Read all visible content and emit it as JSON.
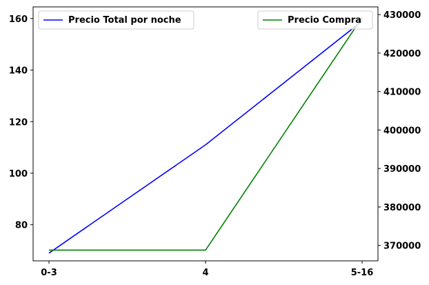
{
  "chart_data": {
    "type": "line",
    "categories": [
      "0-3",
      "4",
      "5-16"
    ],
    "series": [
      {
        "name": "Precio Total por noche",
        "axis": "left",
        "color": "#0000ff",
        "values": [
          69,
          111,
          159
        ]
      },
      {
        "name": "Precio Compra",
        "axis": "right",
        "color": "#008000",
        "values": [
          368800,
          368800,
          429200
        ]
      }
    ],
    "left_axis": {
      "ylim": [
        66,
        164.5
      ],
      "ticks": [
        80,
        100,
        120,
        140,
        160
      ]
    },
    "right_axis": {
      "ylim": [
        366000,
        432000
      ],
      "ticks": [
        370000,
        380000,
        390000,
        400000,
        410000,
        420000,
        430000
      ]
    },
    "legends": [
      "top-left",
      "top-right"
    ],
    "grid": false
  }
}
